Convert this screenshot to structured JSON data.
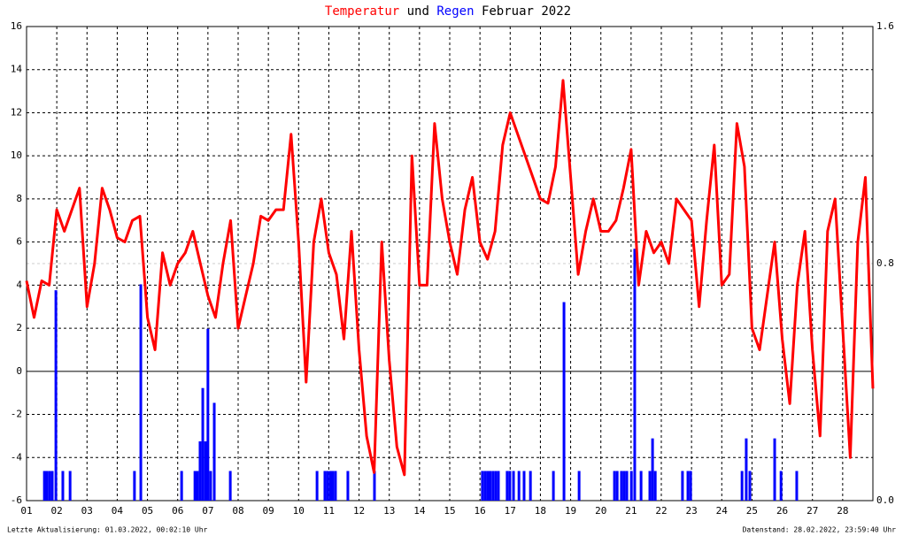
{
  "chart_data": {
    "type": "line",
    "title_connector": "und",
    "title_period": "Februar 2022",
    "footer_left": "Letzte Aktualisierung: 01.03.2022, 00:02:10 Uhr",
    "footer_right": "Datenstand: 28.02.2022, 23:59:40 Uhr",
    "xlim": [
      1,
      29
    ],
    "xticks": [
      {
        "value": 1,
        "label": "01"
      },
      {
        "value": 2,
        "label": "02"
      },
      {
        "value": 3,
        "label": "03"
      },
      {
        "value": 4,
        "label": "04"
      },
      {
        "value": 5,
        "label": "05"
      },
      {
        "value": 6,
        "label": "06"
      },
      {
        "value": 7,
        "label": "07"
      },
      {
        "value": 8,
        "label": "08"
      },
      {
        "value": 9,
        "label": "09"
      },
      {
        "value": 10,
        "label": "10"
      },
      {
        "value": 11,
        "label": "11"
      },
      {
        "value": 12,
        "label": "12"
      },
      {
        "value": 13,
        "label": "13"
      },
      {
        "value": 14,
        "label": "14"
      },
      {
        "value": 15,
        "label": "15"
      },
      {
        "value": 16,
        "label": "16"
      },
      {
        "value": 17,
        "label": "17"
      },
      {
        "value": 18,
        "label": "18"
      },
      {
        "value": 19,
        "label": "19"
      },
      {
        "value": 20,
        "label": "20"
      },
      {
        "value": 21,
        "label": "21"
      },
      {
        "value": 22,
        "label": "22"
      },
      {
        "value": 23,
        "label": "23"
      },
      {
        "value": 24,
        "label": "24"
      },
      {
        "value": 25,
        "label": "25"
      },
      {
        "value": 26,
        "label": "26"
      },
      {
        "value": 27,
        "label": "27"
      },
      {
        "value": 28,
        "label": "28"
      }
    ],
    "ylim": [
      -6,
      16
    ],
    "yticks": [
      -6,
      -4,
      -2,
      0,
      2,
      4,
      6,
      8,
      10,
      12,
      14,
      16
    ],
    "y2lim": [
      0,
      1.6
    ],
    "y2ticks": [
      {
        "value": 0,
        "label": "0.0"
      },
      {
        "value": 0.8,
        "label": "0.8"
      },
      {
        "value": 1.6,
        "label": "1.6"
      }
    ],
    "grid": true,
    "series": [
      {
        "name": "Temperatur",
        "color": "#ff0000",
        "type": "line",
        "x": [
          1,
          1.25,
          1.5,
          1.75,
          2,
          2.25,
          2.5,
          2.75,
          3,
          3.25,
          3.5,
          3.75,
          4,
          4.25,
          4.5,
          4.75,
          5,
          5.25,
          5.5,
          5.75,
          6,
          6.25,
          6.5,
          6.75,
          7,
          7.25,
          7.5,
          7.75,
          8,
          8.25,
          8.5,
          8.75,
          9,
          9.25,
          9.5,
          9.75,
          10,
          10.25,
          10.5,
          10.75,
          11,
          11.25,
          11.5,
          11.75,
          12,
          12.25,
          12.5,
          12.75,
          13,
          13.25,
          13.5,
          13.75,
          14,
          14.25,
          14.5,
          14.75,
          15,
          15.25,
          15.5,
          15.75,
          16,
          16.25,
          16.5,
          16.75,
          17,
          17.25,
          17.5,
          17.75,
          18,
          18.25,
          18.5,
          18.75,
          19,
          19.25,
          19.5,
          19.75,
          20,
          20.25,
          20.5,
          20.75,
          21,
          21.25,
          21.5,
          21.75,
          22,
          22.25,
          22.5,
          22.75,
          23,
          23.25,
          23.5,
          23.75,
          24,
          24.25,
          24.5,
          24.75,
          25,
          25.25,
          25.5,
          25.75,
          26,
          26.25,
          26.5,
          26.75,
          27,
          27.25,
          27.5,
          27.75,
          28,
          28.25,
          28.5,
          28.75,
          29
        ],
        "values": [
          4.2,
          2.5,
          4.2,
          4,
          7.5,
          6.5,
          7.5,
          8.5,
          3,
          5,
          8.5,
          7.5,
          6.2,
          6,
          7,
          7.2,
          2.5,
          1,
          5.5,
          4,
          5,
          5.5,
          6.5,
          5,
          3.5,
          2.5,
          5,
          7,
          2,
          3.5,
          5,
          7.2,
          7,
          7.5,
          7.5,
          11,
          6,
          -0.5,
          6,
          8,
          5.5,
          4.5,
          1.5,
          6.5,
          1,
          -3,
          -4.7,
          6,
          0.5,
          -3.5,
          -4.8,
          10,
          4,
          4,
          11.5,
          8,
          6,
          4.5,
          7.5,
          9,
          6,
          5.2,
          6.5,
          10.5,
          12,
          11,
          10,
          9,
          8,
          7.8,
          9.5,
          13.5,
          9,
          4.5,
          6.5,
          8,
          6.5,
          6.5,
          7,
          8.5,
          10.3,
          4,
          6.5,
          5.5,
          6,
          5,
          8,
          7.5,
          7,
          3,
          7,
          10.5,
          4,
          4.5,
          11.5,
          9.5,
          2,
          1,
          3.5,
          6,
          1.5,
          -1.5,
          4,
          6.5,
          1,
          -3,
          6.5,
          8,
          2,
          -4,
          6,
          9,
          -0.8
        ]
      },
      {
        "name": "Regen",
        "color": "#0000ff",
        "type": "bar",
        "axis": "y2",
        "x": [
          1.59,
          1.67,
          1.76,
          1.85,
          1.97,
          2.2,
          2.44,
          4.57,
          4.78,
          6.13,
          6.57,
          6.65,
          6.74,
          6.83,
          6.92,
          7.0,
          7.09,
          7.21,
          7.74,
          10.61,
          10.87,
          10.96,
          11.05,
          11.13,
          11.22,
          11.63,
          12.51,
          16.08,
          16.17,
          16.26,
          16.34,
          16.43,
          16.52,
          16.61,
          16.9,
          16.99,
          17.11,
          17.29,
          17.46,
          17.67,
          18.43,
          18.78,
          19.28,
          20.45,
          20.54,
          20.68,
          20.77,
          20.86,
          21.01,
          21.12,
          21.33,
          21.62,
          21.71,
          21.8,
          22.7,
          22.88,
          22.97,
          24.67,
          24.81,
          24.93,
          25.75,
          25.96,
          26.48
        ],
        "values": [
          0.1,
          0.1,
          0.1,
          0.1,
          0.71,
          0.1,
          0.1,
          0.1,
          0.73,
          0.1,
          0.1,
          0.1,
          0.2,
          0.38,
          0.2,
          0.58,
          0.1,
          0.33,
          0.1,
          0.1,
          0.1,
          0.1,
          0.1,
          0.1,
          0.1,
          0.1,
          0.1,
          0.1,
          0.1,
          0.1,
          0.1,
          0.1,
          0.1,
          0.1,
          0.1,
          0.1,
          0.1,
          0.1,
          0.1,
          0.1,
          0.1,
          0.67,
          0.1,
          0.1,
          0.1,
          0.1,
          0.1,
          0.1,
          0.1,
          0.85,
          0.1,
          0.1,
          0.21,
          0.1,
          0.1,
          0.1,
          0.1,
          0.1,
          0.21,
          0.1,
          0.21,
          0.1,
          0.1
        ]
      }
    ]
  }
}
